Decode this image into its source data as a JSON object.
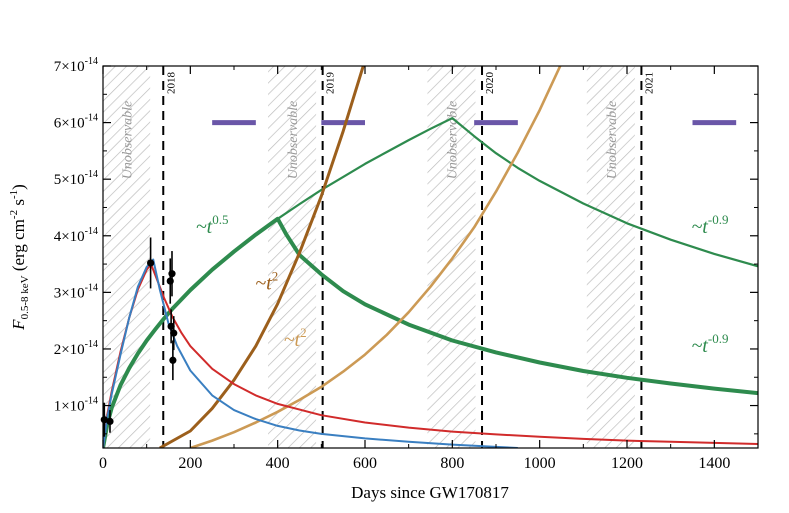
{
  "chart_data": {
    "type": "line",
    "xlabel": "Days since GW170817",
    "ylabel_main": "F",
    "ylabel_sub": "0.5-8 keV",
    "ylabel_units": " (erg cm",
    "ylabel_exp1": "-2",
    "ylabel_mid": " s",
    "ylabel_exp2": "-1",
    "ylabel_end": ")",
    "xlim": [
      0,
      1500
    ],
    "ylim": [
      0.25,
      7.0
    ],
    "y_scale_note": "values in units of 1e-14",
    "x_ticks": [
      "0",
      "200",
      "400",
      "600",
      "800",
      "1000",
      "1200",
      "1400"
    ],
    "y_ticks": [
      {
        "v": 1,
        "mant": "1",
        "base": "×10",
        "exp": "-14"
      },
      {
        "v": 2,
        "mant": "2",
        "base": "×10",
        "exp": "-14"
      },
      {
        "v": 3,
        "mant": "3",
        "base": "×10",
        "exp": "-14"
      },
      {
        "v": 4,
        "mant": "4",
        "base": "×10",
        "exp": "-14"
      },
      {
        "v": 5,
        "mant": "5",
        "base": "×10",
        "exp": "-14"
      },
      {
        "v": 6,
        "mant": "6",
        "base": "×10",
        "exp": "-14"
      },
      {
        "v": 7,
        "mant": "7",
        "base": "×10",
        "exp": "-14"
      }
    ],
    "unobservable_label": "Unobservable",
    "unobservable_windows": [
      [
        0,
        108
      ],
      [
        378,
        488
      ],
      [
        743,
        853
      ],
      [
        1108,
        1218
      ]
    ],
    "year_markers": [
      {
        "x": 138,
        "label": "2018"
      },
      {
        "x": 503,
        "label": "2019"
      },
      {
        "x": 868,
        "label": "2020"
      },
      {
        "x": 1233,
        "label": "2021"
      }
    ],
    "observation_bars": [
      [
        250,
        350
      ],
      [
        500,
        600
      ],
      [
        850,
        950
      ],
      [
        1350,
        1450
      ]
    ],
    "observation_bar_level": 6.0,
    "annotations": [
      {
        "text": "~t",
        "sup": "0.5",
        "x": 250,
        "y": 4.05,
        "color": "#2e8b4e"
      },
      {
        "text": "~t",
        "sup": "-0.9",
        "x": 1390,
        "y": 4.05,
        "color": "#2e8b4e"
      },
      {
        "text": "~t",
        "sup": "-0.9",
        "x": 1390,
        "y": 1.95,
        "color": "#2e8b4e"
      },
      {
        "text": "~t",
        "sup": "2",
        "x": 375,
        "y": 3.05,
        "color": "#9c5f1c"
      },
      {
        "text": "~t",
        "sup": "2",
        "x": 440,
        "y": 2.05,
        "color": "#cc9a55"
      }
    ],
    "series": [
      {
        "color": "#2e8b4e",
        "width": 2.2,
        "x": [
          0,
          10,
          20,
          40,
          60,
          80,
          100,
          120,
          140,
          160,
          200,
          250,
          300,
          350,
          400,
          450,
          500,
          550,
          600,
          650,
          700,
          750,
          800,
          850,
          900,
          950,
          1000,
          1100,
          1200,
          1300,
          1400,
          1500
        ],
        "y": [
          0.25,
          0.68,
          0.96,
          1.36,
          1.66,
          1.92,
          2.15,
          2.35,
          2.54,
          2.72,
          3.04,
          3.4,
          3.72,
          4.02,
          4.3,
          4.56,
          4.81,
          5.04,
          5.27,
          5.48,
          5.69,
          5.89,
          6.08,
          5.76,
          5.46,
          5.2,
          4.97,
          4.57,
          4.22,
          3.93,
          3.68,
          3.46
        ]
      },
      {
        "color": "#2e8b4e",
        "width": 4.0,
        "x": [
          0,
          10,
          20,
          40,
          60,
          80,
          100,
          120,
          140,
          160,
          200,
          250,
          300,
          350,
          400,
          420,
          450,
          500,
          550,
          600,
          700,
          800,
          900,
          1000,
          1100,
          1200,
          1300,
          1400,
          1500
        ],
        "y": [
          0.25,
          0.68,
          0.96,
          1.36,
          1.66,
          1.92,
          2.15,
          2.35,
          2.54,
          2.72,
          3.04,
          3.4,
          3.72,
          4.02,
          4.3,
          4.02,
          3.66,
          3.32,
          3.02,
          2.79,
          2.43,
          2.15,
          1.94,
          1.76,
          1.61,
          1.49,
          1.39,
          1.3,
          1.22
        ]
      },
      {
        "color": "#9c5f1c",
        "width": 3.0,
        "x": [
          130,
          200,
          250,
          300,
          350,
          400,
          450,
          500,
          550,
          600,
          625
        ],
        "y": [
          0.25,
          0.55,
          0.95,
          1.45,
          2.05,
          2.8,
          3.7,
          4.7,
          5.85,
          7.1,
          7.8
        ]
      },
      {
        "color": "#cc9a55",
        "width": 2.6,
        "x": [
          200,
          250,
          300,
          350,
          400,
          450,
          500,
          550,
          600,
          650,
          700,
          750,
          800,
          850,
          900,
          950,
          1000,
          1050,
          1100
        ],
        "y": [
          0.25,
          0.38,
          0.53,
          0.7,
          0.89,
          1.1,
          1.33,
          1.6,
          1.9,
          2.25,
          2.65,
          3.1,
          3.6,
          4.15,
          4.78,
          5.47,
          6.22,
          7.05,
          7.9
        ]
      },
      {
        "color": "#d12b2b",
        "width": 2.0,
        "x": [
          0,
          10,
          20,
          40,
          60,
          80,
          100,
          110,
          120,
          140,
          160,
          180,
          200,
          250,
          300,
          350,
          400,
          500,
          600,
          700,
          800,
          900,
          1000,
          1100,
          1200,
          1300,
          1400,
          1500
        ],
        "y": [
          0.25,
          0.85,
          1.25,
          1.95,
          2.55,
          3.05,
          3.4,
          3.5,
          3.3,
          2.9,
          2.55,
          2.28,
          2.05,
          1.65,
          1.38,
          1.18,
          1.03,
          0.83,
          0.7,
          0.61,
          0.54,
          0.49,
          0.45,
          0.41,
          0.38,
          0.36,
          0.34,
          0.32
        ]
      },
      {
        "color": "#3a7fc1",
        "width": 2.0,
        "x": [
          0,
          10,
          20,
          40,
          60,
          80,
          100,
          115,
          130,
          150,
          170,
          200,
          250,
          300,
          350,
          400,
          450,
          500,
          600,
          700,
          800,
          900,
          950
        ],
        "y": [
          0.25,
          0.8,
          1.2,
          1.9,
          2.55,
          3.1,
          3.45,
          3.58,
          3.05,
          2.45,
          2.05,
          1.62,
          1.18,
          0.92,
          0.76,
          0.64,
          0.56,
          0.5,
          0.42,
          0.36,
          0.31,
          0.27,
          0.25
        ]
      }
    ],
    "observations": [
      {
        "x": 3,
        "y": 0.75,
        "yerr": 0.3
      },
      {
        "x": 16,
        "y": 0.72,
        "yerr": 0.2
      },
      {
        "x": 109,
        "y": 3.52,
        "yerr": 0.45
      },
      {
        "x": 154,
        "y": 3.2,
        "yerr": 0.4
      },
      {
        "x": 156,
        "y": 2.4,
        "yerr": 0.3
      },
      {
        "x": 158,
        "y": 3.33,
        "yerr": 0.4
      },
      {
        "x": 160,
        "y": 1.8,
        "yerr": 0.35
      },
      {
        "x": 162,
        "y": 2.28,
        "yerr": 0.3
      }
    ]
  }
}
